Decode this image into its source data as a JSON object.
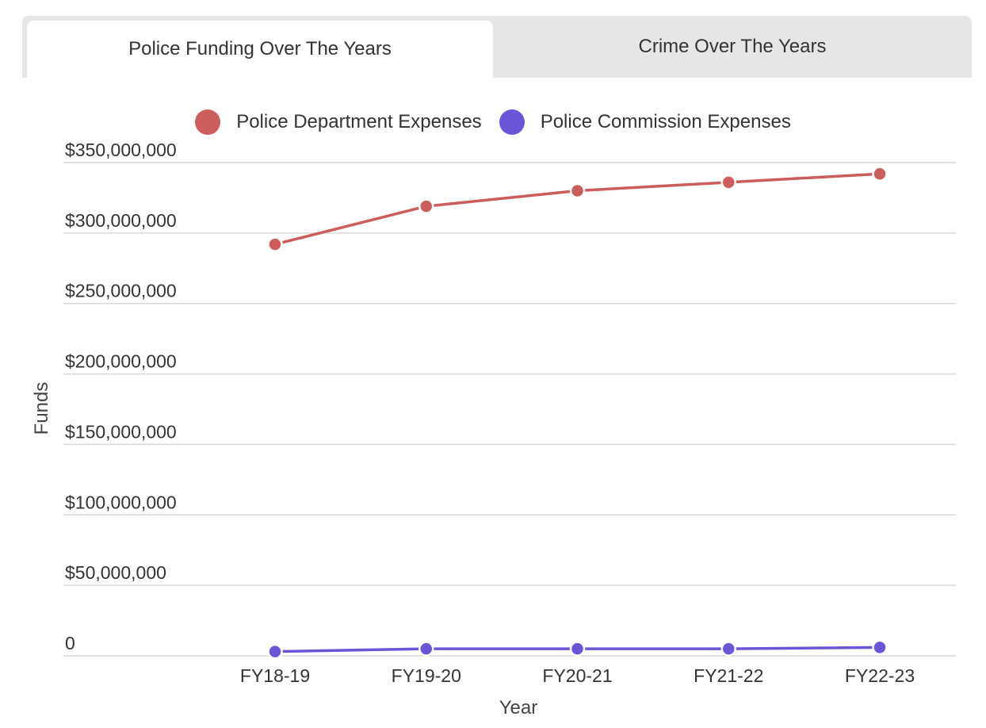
{
  "tabs": [
    {
      "label": "Police Funding Over The Years",
      "active": true
    },
    {
      "label": "Crime Over The Years",
      "active": false
    }
  ],
  "chart_data": {
    "type": "line",
    "title": "",
    "xlabel": "Year",
    "ylabel": "Funds",
    "categories": [
      "FY18-19",
      "FY19-20",
      "FY20-21",
      "FY21-22",
      "FY22-23"
    ],
    "ylim": [
      0,
      350000000
    ],
    "yticks": [
      0,
      50000000,
      100000000,
      150000000,
      200000000,
      250000000,
      300000000,
      350000000
    ],
    "ytick_labels": [
      "0",
      "$50,000,000",
      "$100,000,000",
      "$150,000,000",
      "$200,000,000",
      "$250,000,000",
      "$300,000,000",
      "$350,000,000"
    ],
    "grid": true,
    "legend_position": "top-center",
    "series": [
      {
        "name": "Police Department Expenses",
        "color": "#cd5c5c",
        "values": [
          292000000,
          319000000,
          330000000,
          336000000,
          342000000
        ]
      },
      {
        "name": "Police Commission Expenses",
        "color": "#6a55d8",
        "values": [
          3000000,
          5000000,
          5000000,
          5000000,
          6000000
        ]
      }
    ]
  }
}
